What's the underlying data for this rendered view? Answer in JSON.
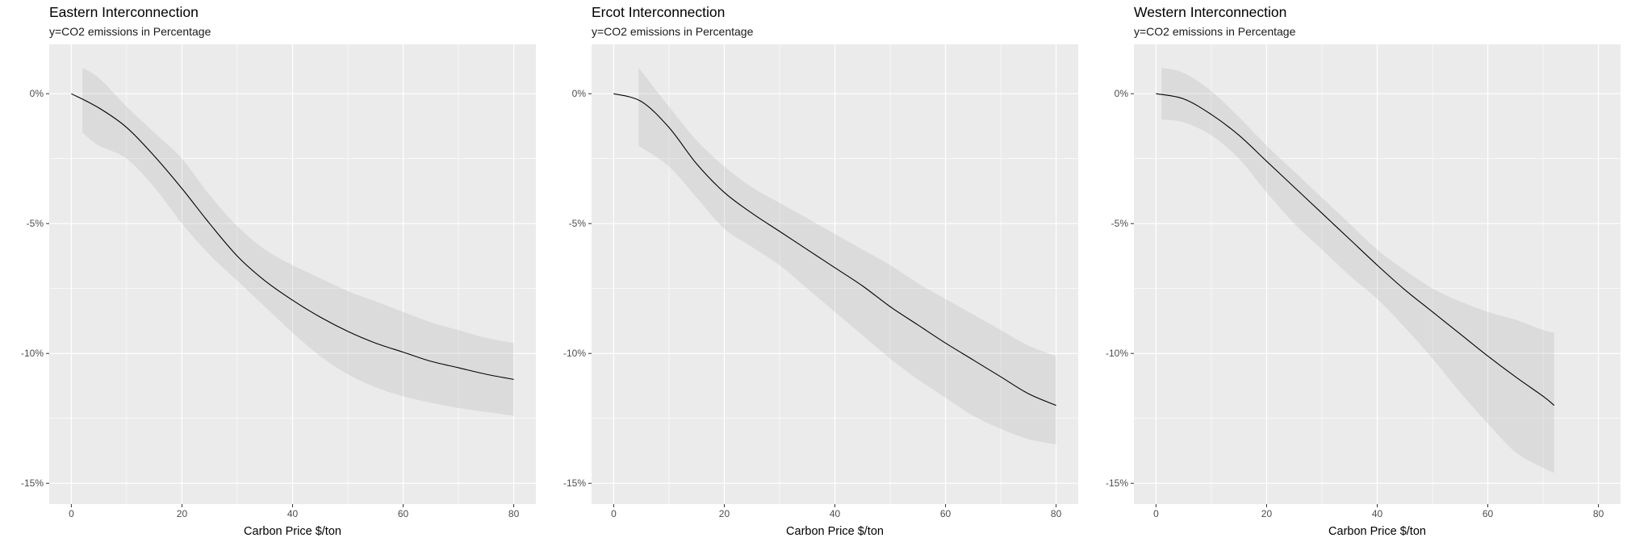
{
  "chart_data": [
    {
      "type": "line",
      "title": "Eastern Interconnection",
      "subtitle": "y=CO2 emissions in Percentage",
      "xlabel": "Carbon Price $/ton",
      "ylabel": "",
      "xlim": [
        -4,
        84
      ],
      "ylim": [
        -15.8,
        1.9
      ],
      "xticks": [
        0,
        20,
        40,
        60,
        80
      ],
      "yticks": [
        0,
        -5,
        -10,
        -15
      ],
      "ytick_labels": [
        "0%",
        "-5%",
        "-10%",
        "-15%"
      ],
      "grid": true,
      "series": [
        {
          "x": [
            0,
            5,
            10,
            15,
            20,
            25,
            30,
            35,
            40,
            45,
            50,
            55,
            60,
            65,
            70,
            75,
            80
          ],
          "y": [
            0,
            -0.55,
            -1.3,
            -2.4,
            -3.65,
            -5.0,
            -6.25,
            -7.2,
            -7.95,
            -8.6,
            -9.15,
            -9.6,
            -9.95,
            -10.3,
            -10.55,
            -10.8,
            -11.0
          ]
        }
      ],
      "ribbon": {
        "x": [
          2,
          5,
          10,
          15,
          20,
          25,
          30,
          35,
          40,
          45,
          50,
          55,
          60,
          65,
          70,
          75,
          80
        ],
        "upper": [
          1.0,
          0.6,
          -0.5,
          -1.5,
          -2.5,
          -3.9,
          -5.1,
          -6.0,
          -6.6,
          -7.1,
          -7.6,
          -8.0,
          -8.4,
          -8.8,
          -9.1,
          -9.4,
          -9.6
        ],
        "lower": [
          -1.5,
          -2.0,
          -2.5,
          -3.6,
          -5.0,
          -6.2,
          -7.2,
          -8.2,
          -9.2,
          -10.1,
          -10.8,
          -11.3,
          -11.65,
          -11.9,
          -12.1,
          -12.25,
          -12.4
        ]
      }
    },
    {
      "type": "line",
      "title": "Ercot Interconnection",
      "subtitle": "y=CO2 emissions in Percentage",
      "xlabel": "Carbon Price $/ton",
      "ylabel": "",
      "xlim": [
        -4,
        84
      ],
      "ylim": [
        -15.8,
        1.9
      ],
      "xticks": [
        0,
        20,
        40,
        60,
        80
      ],
      "yticks": [
        0,
        -5,
        -10,
        -15
      ],
      "ytick_labels": [
        "0%",
        "-5%",
        "-10%",
        "-15%"
      ],
      "grid": true,
      "series": [
        {
          "x": [
            0,
            5,
            10,
            15,
            20,
            25,
            30,
            35,
            40,
            45,
            50,
            55,
            60,
            65,
            70,
            75,
            80
          ],
          "y": [
            0,
            -0.3,
            -1.3,
            -2.7,
            -3.8,
            -4.6,
            -5.3,
            -6.0,
            -6.7,
            -7.4,
            -8.2,
            -8.9,
            -9.6,
            -10.25,
            -10.9,
            -11.55,
            -12.0
          ]
        }
      ],
      "ribbon": {
        "x": [
          4.5,
          10,
          15,
          20,
          25,
          30,
          35,
          40,
          45,
          50,
          55,
          60,
          65,
          70,
          75,
          80
        ],
        "upper": [
          1.0,
          -0.5,
          -1.8,
          -2.8,
          -3.6,
          -4.2,
          -4.8,
          -5.4,
          -6.0,
          -6.6,
          -7.3,
          -7.9,
          -8.5,
          -9.1,
          -9.7,
          -10.1
        ],
        "lower": [
          -2.0,
          -2.8,
          -4.0,
          -5.2,
          -5.9,
          -6.6,
          -7.5,
          -8.4,
          -9.3,
          -10.2,
          -11.0,
          -11.7,
          -12.4,
          -12.9,
          -13.3,
          -13.5
        ]
      }
    },
    {
      "type": "line",
      "title": "Western Interconnection",
      "subtitle": "y=CO2 emissions in Percentage",
      "xlabel": "Carbon Price $/ton",
      "ylabel": "",
      "xlim": [
        -4,
        84
      ],
      "ylim": [
        -15.8,
        1.9
      ],
      "xticks": [
        0,
        20,
        40,
        60,
        80
      ],
      "yticks": [
        0,
        -5,
        -10,
        -15
      ],
      "ytick_labels": [
        "0%",
        "-5%",
        "-10%",
        "-15%"
      ],
      "grid": true,
      "series": [
        {
          "x": [
            0,
            5,
            10,
            15,
            20,
            25,
            30,
            35,
            40,
            45,
            50,
            55,
            60,
            65,
            70,
            72
          ],
          "y": [
            0,
            -0.2,
            -0.8,
            -1.6,
            -2.6,
            -3.6,
            -4.6,
            -5.6,
            -6.6,
            -7.55,
            -8.4,
            -9.25,
            -10.1,
            -10.9,
            -11.65,
            -12.0
          ]
        }
      ],
      "ribbon": {
        "x": [
          1,
          5,
          10,
          15,
          20,
          25,
          30,
          35,
          40,
          45,
          50,
          55,
          60,
          65,
          70,
          72
        ],
        "upper": [
          1.0,
          0.8,
          0.1,
          -0.9,
          -2.0,
          -3.0,
          -4.0,
          -5.0,
          -6.0,
          -6.8,
          -7.5,
          -8.0,
          -8.4,
          -8.7,
          -9.1,
          -9.2
        ],
        "lower": [
          -1.0,
          -1.1,
          -1.6,
          -2.5,
          -3.8,
          -5.0,
          -6.0,
          -7.0,
          -7.9,
          -9.0,
          -10.2,
          -11.5,
          -12.7,
          -13.8,
          -14.4,
          -14.6
        ]
      }
    }
  ]
}
